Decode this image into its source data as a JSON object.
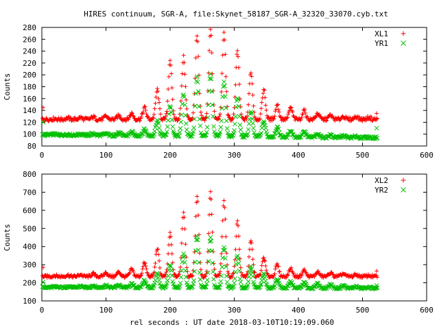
{
  "chart_data": [
    {
      "type": "scatter",
      "title": "HIRES continuum, SGR-A, file:Skynet_58187_SGR-A_32320_33070.cyb.txt",
      "xlabel": "",
      "ylabel": "Counts",
      "xlim": [
        0,
        600
      ],
      "ylim": [
        80,
        280
      ],
      "xticks": [
        0,
        100,
        200,
        300,
        400,
        500,
        600
      ],
      "yticks": [
        80,
        100,
        120,
        140,
        160,
        180,
        200,
        220,
        240,
        260,
        280
      ],
      "grid": false,
      "legend": "top-right",
      "series": [
        {
          "name": "XL1",
          "marker": "plus",
          "color": "#ff0000",
          "base": 125,
          "slope": 0.0,
          "ripple": 3,
          "x_start": 1,
          "x_end": 523,
          "step": 1,
          "peaks": [
            [
              20,
              126
            ],
            [
              40,
              127
            ],
            [
              60,
              128
            ],
            [
              80,
              129
            ],
            [
              100,
              130
            ],
            [
              120,
              131
            ],
            [
              140,
              135
            ],
            [
              160,
              145
            ],
            [
              180,
              175
            ],
            [
              200,
              225
            ],
            [
              221,
              230
            ],
            [
              242,
              265
            ],
            [
              263,
              278
            ],
            [
              284,
              270
            ],
            [
              305,
              240
            ],
            [
              326,
              205
            ],
            [
              346,
              175
            ],
            [
              367,
              150
            ],
            [
              388,
              145
            ],
            [
              409,
              140
            ],
            [
              430,
              135
            ],
            [
              450,
              132
            ],
            [
              470,
              130
            ],
            [
              490,
              130
            ],
            [
              510,
              128
            ]
          ],
          "outliers": [
            [
              2,
              145
            ],
            [
              522,
              135
            ]
          ]
        },
        {
          "name": "YR1",
          "marker": "x",
          "color": "#00c000",
          "base": 99,
          "slope": -0.01,
          "ripple": 2,
          "x_start": 1,
          "x_end": 523,
          "step": 1,
          "peaks": [
            [
              20,
              100
            ],
            [
              40,
              100
            ],
            [
              60,
              101
            ],
            [
              80,
              102
            ],
            [
              100,
              102
            ],
            [
              120,
              103
            ],
            [
              140,
              105
            ],
            [
              160,
              110
            ],
            [
              180,
              125
            ],
            [
              200,
              150
            ],
            [
              221,
              170
            ],
            [
              242,
              198
            ],
            [
              263,
              203
            ],
            [
              284,
              190
            ],
            [
              305,
              165
            ],
            [
              326,
              140
            ],
            [
              346,
              125
            ],
            [
              367,
              115
            ],
            [
              388,
              110
            ],
            [
              409,
              108
            ],
            [
              430,
              105
            ],
            [
              450,
              103
            ],
            [
              470,
              102
            ],
            [
              490,
              101
            ],
            [
              510,
              100
            ]
          ],
          "outliers": [
            [
              2,
              120
            ],
            [
              522,
              110
            ]
          ]
        }
      ]
    },
    {
      "type": "scatter",
      "title": "",
      "xlabel": "rel seconds : UT date 2018-03-10T10:19:09.060",
      "ylabel": "Counts",
      "xlim": [
        0,
        600
      ],
      "ylim": [
        100,
        800
      ],
      "xticks": [
        0,
        100,
        200,
        300,
        400,
        500,
        600
      ],
      "yticks": [
        100,
        200,
        300,
        400,
        500,
        600,
        700,
        800
      ],
      "grid": false,
      "legend": "top-right",
      "series": [
        {
          "name": "XL2",
          "marker": "plus",
          "color": "#ff0000",
          "base": 235,
          "slope": 0.0,
          "ripple": 8,
          "x_start": 1,
          "x_end": 523,
          "step": 1,
          "peaks": [
            [
              20,
              240
            ],
            [
              40,
              242
            ],
            [
              60,
              245
            ],
            [
              80,
              250
            ],
            [
              100,
              255
            ],
            [
              120,
              260
            ],
            [
              140,
              275
            ],
            [
              160,
              310
            ],
            [
              180,
              390
            ],
            [
              200,
              470
            ],
            [
              221,
              590
            ],
            [
              242,
              680
            ],
            [
              263,
              700
            ],
            [
              284,
              650
            ],
            [
              305,
              540
            ],
            [
              326,
              430
            ],
            [
              346,
              340
            ],
            [
              367,
              300
            ],
            [
              388,
              280
            ],
            [
              409,
              270
            ],
            [
              430,
              260
            ],
            [
              450,
              255
            ],
            [
              470,
              250
            ],
            [
              490,
              245
            ],
            [
              510,
              240
            ]
          ],
          "outliers": [
            [
              2,
              285
            ],
            [
              522,
              265
            ]
          ]
        },
        {
          "name": "YR2",
          "marker": "x",
          "color": "#00c000",
          "base": 175,
          "slope": -0.01,
          "ripple": 5,
          "x_start": 1,
          "x_end": 523,
          "step": 1,
          "peaks": [
            [
              20,
              178
            ],
            [
              40,
              180
            ],
            [
              60,
              182
            ],
            [
              80,
              185
            ],
            [
              100,
              188
            ],
            [
              120,
              190
            ],
            [
              140,
              195
            ],
            [
              160,
              215
            ],
            [
              180,
              255
            ],
            [
              200,
              300
            ],
            [
              221,
              360
            ],
            [
              242,
              455
            ],
            [
              263,
              450
            ],
            [
              284,
              400
            ],
            [
              305,
              350
            ],
            [
              326,
              290
            ],
            [
              346,
              250
            ],
            [
              367,
              225
            ],
            [
              388,
              210
            ],
            [
              409,
              205
            ],
            [
              430,
              200
            ],
            [
              450,
              195
            ],
            [
              470,
              190
            ],
            [
              490,
              185
            ],
            [
              510,
              180
            ]
          ],
          "outliers": [
            [
              2,
              205
            ],
            [
              522,
              185
            ]
          ]
        }
      ]
    }
  ]
}
